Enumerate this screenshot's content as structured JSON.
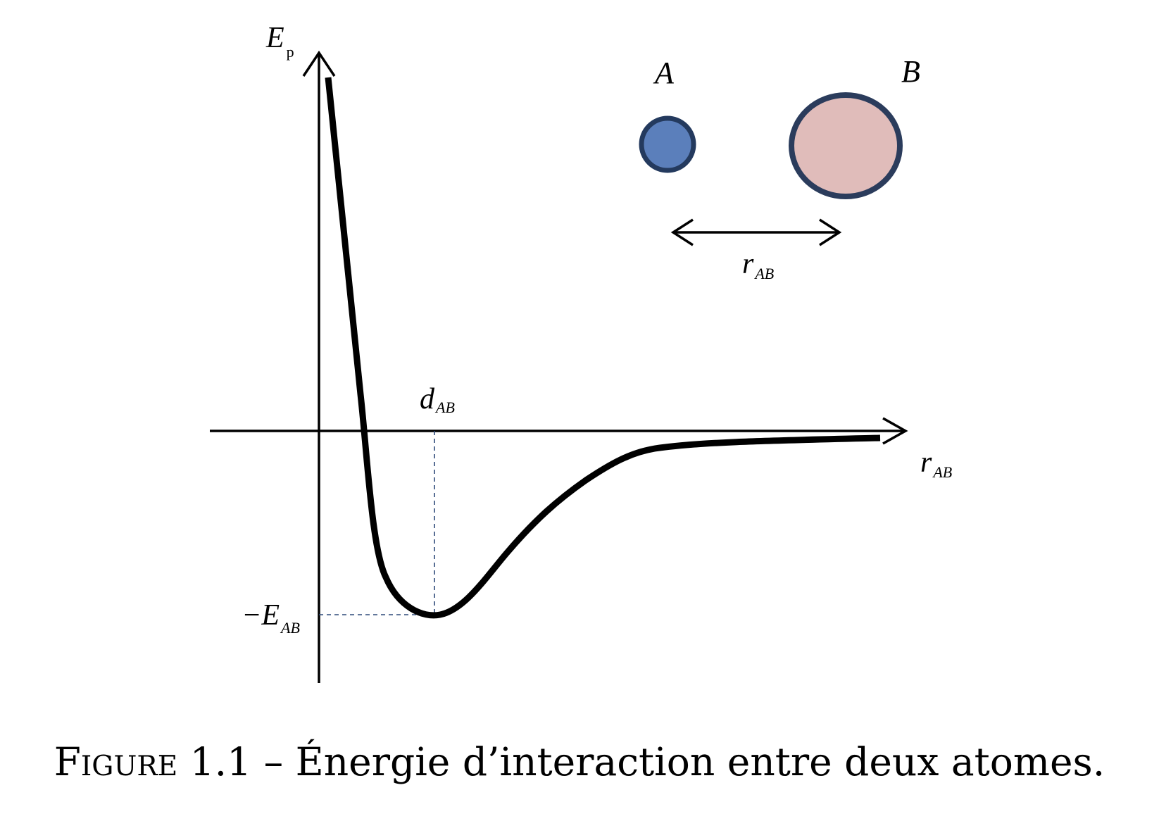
{
  "y_axis_label": {
    "main": "E",
    "sub": "p"
  },
  "x_axis_label": {
    "main": "r",
    "sub": "AB"
  },
  "d_label": {
    "main": "d",
    "sub": "AB"
  },
  "e_label": {
    "main": "−E",
    "sub": "AB"
  },
  "atom_a": {
    "label": "A",
    "fill": "#5b7fbb",
    "stroke": "#243a5e"
  },
  "atom_b": {
    "label": "B",
    "fill": "#e0bcba",
    "stroke": "#2b3c5c"
  },
  "distance_label": {
    "main": "r",
    "sub": "AB"
  },
  "guide_color": "#2e4a7a",
  "caption": {
    "figure_word": "Figure 1.1",
    "text": " – Énergie d’interaction entre deux atomes."
  }
}
